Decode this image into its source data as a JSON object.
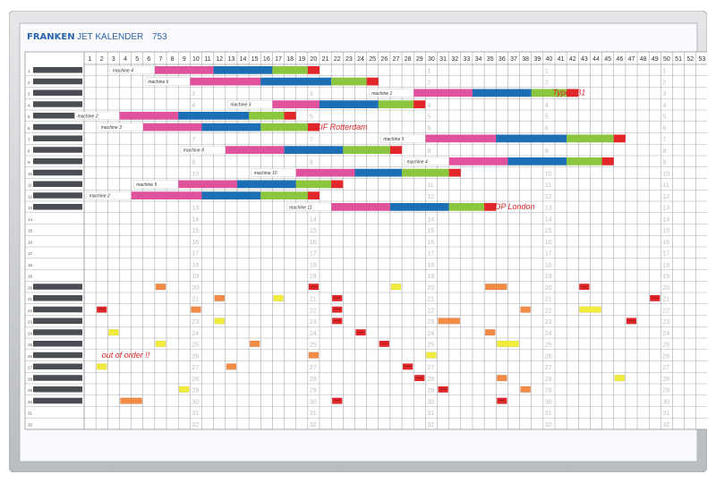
{
  "header": {
    "brand": "FRANKEN",
    "product": "JET KALENDER",
    "model": "753"
  },
  "weeks": [
    "1",
    "2",
    "3",
    "4",
    "5",
    "6",
    "7",
    "8",
    "9",
    "10",
    "11",
    "12",
    "13",
    "14",
    "15",
    "16",
    "17",
    "18",
    "19",
    "20",
    "21",
    "22",
    "23",
    "24",
    "25",
    "26",
    "27",
    "28",
    "29",
    "30",
    "31",
    "32",
    "33",
    "34",
    "35",
    "36",
    "37",
    "38",
    "39",
    "40",
    "41",
    "42",
    "43",
    "44",
    "45",
    "46",
    "47",
    "48",
    "49",
    "50",
    "51",
    "52",
    "53"
  ],
  "row_numbers": [
    "1",
    "2",
    "3",
    "4",
    "5",
    "6",
    "7",
    "8",
    "9",
    "10",
    "11",
    "12",
    "13",
    "14",
    "15",
    "16",
    "17",
    "18",
    "19",
    "20",
    "21",
    "22",
    "23",
    "24",
    "25",
    "26",
    "27",
    "28",
    "29",
    "30",
    "31",
    "32"
  ],
  "colors": {
    "pink": "#e0529c",
    "blue": "#1c6fb5",
    "green": "#8cc63f",
    "red": "#e3262a",
    "orange": "#f28b45",
    "yellow": "#f1ec3b",
    "handwriting": "#d8262a",
    "grid": "#9a9aa0",
    "frame": "#c9cbce"
  },
  "schedule": [
    {
      "row": 1,
      "label": "machine 4",
      "segments": [
        {
          "color": "pink",
          "from": 7,
          "to": 11
        },
        {
          "color": "blue",
          "from": 12,
          "to": 16
        },
        {
          "color": "green",
          "from": 17,
          "to": 19
        },
        {
          "color": "red",
          "from": 20,
          "to": 20
        }
      ]
    },
    {
      "row": 2,
      "label": "machine 6",
      "segments": [
        {
          "color": "pink",
          "from": 10,
          "to": 15
        },
        {
          "color": "blue",
          "from": 16,
          "to": 21
        },
        {
          "color": "green",
          "from": 22,
          "to": 24
        },
        {
          "color": "red",
          "from": 25,
          "to": 25
        }
      ]
    },
    {
      "row": 3,
      "label": "machine 1",
      "segments": [
        {
          "color": "pink",
          "from": 29,
          "to": 33
        },
        {
          "color": "blue",
          "from": 34,
          "to": 38
        },
        {
          "color": "green",
          "from": 39,
          "to": 41
        },
        {
          "color": "red",
          "from": 42,
          "to": 42
        }
      ]
    },
    {
      "row": 4,
      "label": "machine 3",
      "segments": [
        {
          "color": "pink",
          "from": 17,
          "to": 20
        },
        {
          "color": "blue",
          "from": 21,
          "to": 25
        },
        {
          "color": "green",
          "from": 26,
          "to": 28
        },
        {
          "color": "red",
          "from": 29,
          "to": 29
        }
      ]
    },
    {
      "row": 5,
      "label": "machine 2",
      "segments": [
        {
          "color": "pink",
          "from": 4,
          "to": 8
        },
        {
          "color": "blue",
          "from": 9,
          "to": 14
        },
        {
          "color": "green",
          "from": 15,
          "to": 17
        },
        {
          "color": "red",
          "from": 18,
          "to": 18
        }
      ]
    },
    {
      "row": 6,
      "label": "machine 3",
      "segments": [
        {
          "color": "pink",
          "from": 6,
          "to": 10
        },
        {
          "color": "blue",
          "from": 11,
          "to": 15
        },
        {
          "color": "green",
          "from": 16,
          "to": 19
        },
        {
          "color": "red",
          "from": 20,
          "to": 20
        }
      ]
    },
    {
      "row": 7,
      "label": "machine 5",
      "segments": [
        {
          "color": "pink",
          "from": 30,
          "to": 35
        },
        {
          "color": "blue",
          "from": 36,
          "to": 41
        },
        {
          "color": "green",
          "from": 42,
          "to": 45
        },
        {
          "color": "red",
          "from": 46,
          "to": 46
        }
      ]
    },
    {
      "row": 8,
      "label": "machine 8",
      "segments": [
        {
          "color": "pink",
          "from": 13,
          "to": 17
        },
        {
          "color": "blue",
          "from": 18,
          "to": 22
        },
        {
          "color": "green",
          "from": 23,
          "to": 26
        },
        {
          "color": "red",
          "from": 27,
          "to": 27
        }
      ]
    },
    {
      "row": 9,
      "label": "machine 4",
      "segments": [
        {
          "color": "pink",
          "from": 32,
          "to": 36
        },
        {
          "color": "blue",
          "from": 37,
          "to": 41
        },
        {
          "color": "green",
          "from": 42,
          "to": 44
        },
        {
          "color": "red",
          "from": 45,
          "to": 45
        }
      ]
    },
    {
      "row": 10,
      "label": "machine 10",
      "segments": [
        {
          "color": "pink",
          "from": 19,
          "to": 23
        },
        {
          "color": "blue",
          "from": 24,
          "to": 27
        },
        {
          "color": "green",
          "from": 28,
          "to": 31
        },
        {
          "color": "red",
          "from": 32,
          "to": 32
        }
      ]
    },
    {
      "row": 11,
      "label": "machine 5",
      "segments": [
        {
          "color": "pink",
          "from": 9,
          "to": 13
        },
        {
          "color": "blue",
          "from": 14,
          "to": 18
        },
        {
          "color": "green",
          "from": 19,
          "to": 21
        },
        {
          "color": "red",
          "from": 22,
          "to": 22
        }
      ]
    },
    {
      "row": 12,
      "label": "machine 2",
      "segments": [
        {
          "color": "pink",
          "from": 5,
          "to": 10
        },
        {
          "color": "blue",
          "from": 11,
          "to": 15
        },
        {
          "color": "green",
          "from": 16,
          "to": 19
        },
        {
          "color": "red",
          "from": 20,
          "to": 20
        }
      ]
    },
    {
      "row": 13,
      "label": "machine 11",
      "segments": [
        {
          "color": "pink",
          "from": 22,
          "to": 26
        },
        {
          "color": "blue",
          "from": 27,
          "to": 31
        },
        {
          "color": "green",
          "from": 32,
          "to": 34
        },
        {
          "color": "red",
          "from": 35,
          "to": 35
        }
      ]
    }
  ],
  "notes": [
    {
      "text": "Type 781",
      "week": 40.8,
      "row": 3
    },
    {
      "text": "CIF Rotterdam",
      "week": 20.6,
      "row": 6
    },
    {
      "text": "DDP London",
      "week": 35.4,
      "row": 13
    },
    {
      "text": "out of order !!",
      "week": 2.5,
      "row": 26
    }
  ],
  "markers": [
    {
      "week": 7,
      "row": 20,
      "color": "orange",
      "span": 1
    },
    {
      "week": 20,
      "row": 20,
      "color": "red",
      "span": 1
    },
    {
      "week": 27,
      "row": 20,
      "color": "yellow",
      "span": 1
    },
    {
      "week": 35,
      "row": 20,
      "color": "orange",
      "span": 2
    },
    {
      "week": 43,
      "row": 20,
      "color": "red",
      "span": 1
    },
    {
      "week": 12,
      "row": 21,
      "color": "orange",
      "span": 1
    },
    {
      "week": 17,
      "row": 21,
      "color": "yellow",
      "span": 1
    },
    {
      "week": 22,
      "row": 21,
      "color": "red",
      "span": 1
    },
    {
      "week": 49,
      "row": 21,
      "color": "red",
      "span": 1
    },
    {
      "week": 2,
      "row": 22,
      "color": "red",
      "span": 1
    },
    {
      "week": 10,
      "row": 22,
      "color": "orange",
      "span": 1
    },
    {
      "week": 22,
      "row": 22,
      "color": "red",
      "span": 1
    },
    {
      "week": 38,
      "row": 22,
      "color": "orange",
      "span": 1
    },
    {
      "week": 43,
      "row": 22,
      "color": "yellow",
      "span": 2
    },
    {
      "week": 12,
      "row": 23,
      "color": "yellow",
      "span": 1
    },
    {
      "week": 22,
      "row": 23,
      "color": "red",
      "span": 1
    },
    {
      "week": 31,
      "row": 23,
      "color": "orange",
      "span": 2
    },
    {
      "week": 47,
      "row": 23,
      "color": "red",
      "span": 1
    },
    {
      "week": 3,
      "row": 24,
      "color": "yellow",
      "span": 1
    },
    {
      "week": 24,
      "row": 24,
      "color": "red",
      "span": 1
    },
    {
      "week": 35,
      "row": 24,
      "color": "orange",
      "span": 1
    },
    {
      "week": 7,
      "row": 25,
      "color": "yellow",
      "span": 1
    },
    {
      "week": 15,
      "row": 25,
      "color": "orange",
      "span": 1
    },
    {
      "week": 26,
      "row": 25,
      "color": "red",
      "span": 1
    },
    {
      "week": 36,
      "row": 25,
      "color": "yellow",
      "span": 2
    },
    {
      "week": 20,
      "row": 26,
      "color": "orange",
      "span": 1
    },
    {
      "week": 30,
      "row": 26,
      "color": "yellow",
      "span": 1
    },
    {
      "week": 2,
      "row": 27,
      "color": "yellow",
      "span": 1
    },
    {
      "week": 13,
      "row": 27,
      "color": "orange",
      "span": 1
    },
    {
      "week": 28,
      "row": 27,
      "color": "red",
      "span": 1
    },
    {
      "week": 29,
      "row": 28,
      "color": "red",
      "span": 1
    },
    {
      "week": 36,
      "row": 28,
      "color": "orange",
      "span": 1
    },
    {
      "week": 46,
      "row": 28,
      "color": "yellow",
      "span": 1
    },
    {
      "week": 9,
      "row": 29,
      "color": "yellow",
      "span": 1
    },
    {
      "week": 31,
      "row": 29,
      "color": "red",
      "span": 1
    },
    {
      "week": 38,
      "row": 29,
      "color": "orange",
      "span": 1
    },
    {
      "week": 4,
      "row": 30,
      "color": "orange",
      "span": 2
    },
    {
      "week": 22,
      "row": 30,
      "color": "red",
      "span": 1
    },
    {
      "week": 36,
      "row": 30,
      "color": "red",
      "span": 1
    }
  ]
}
